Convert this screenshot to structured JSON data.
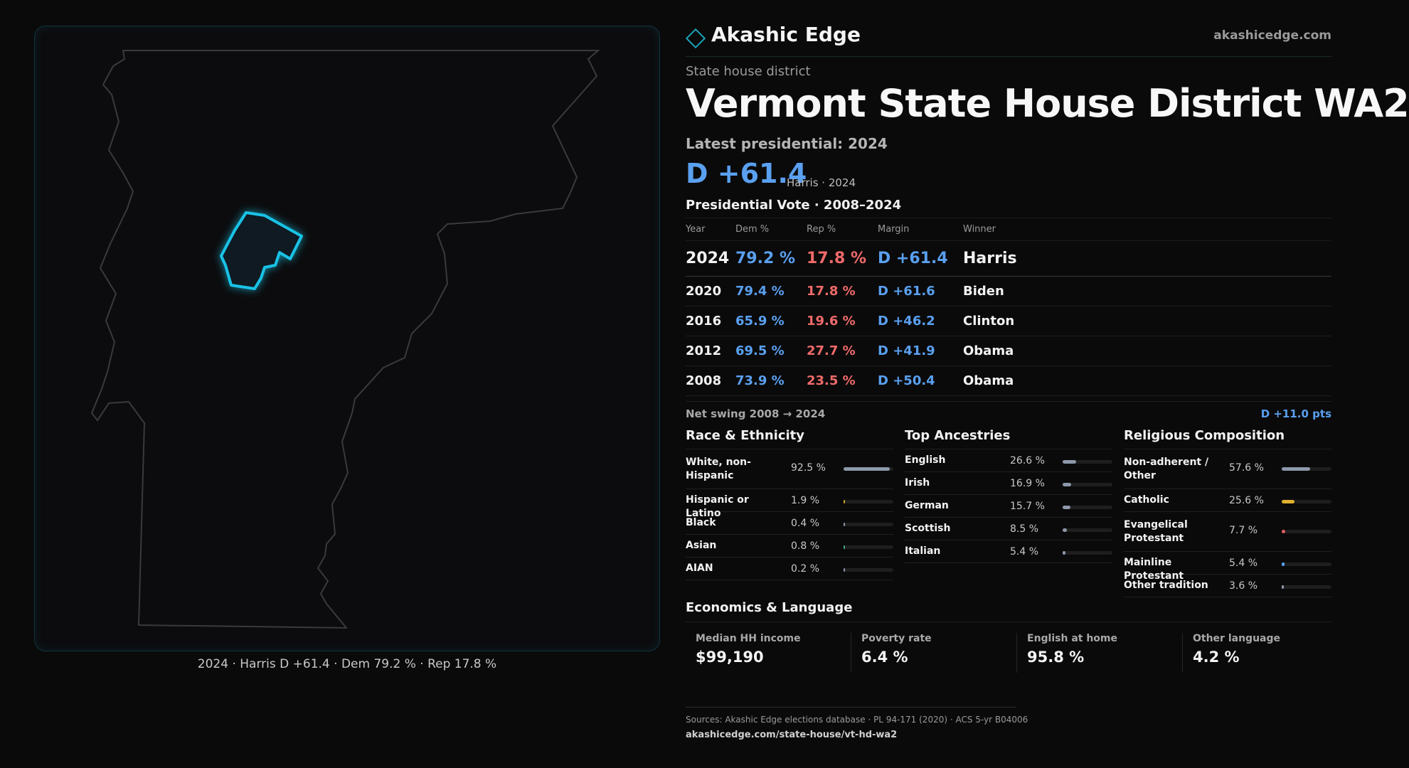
{
  "brand": {
    "name": "Akashic Edge",
    "url": "akashicedge.com",
    "accent": "#1aa3b8"
  },
  "kicker": "State house district",
  "title": "Vermont  State House District WA2",
  "latest_label": "Latest presidential: 2024",
  "latest_margin": "D +61.4",
  "latest_sub": "Harris · 2024",
  "map_caption": "2024 · Harris D +61.4 · Dem 79.2 % · Rep 17.8 %",
  "presidential": {
    "heading": "Presidential Vote · 2008–2024",
    "columns": [
      "Year",
      "Dem %",
      "Rep %",
      "Margin",
      "Winner"
    ],
    "rows": [
      {
        "year": "2024",
        "dem": "79.2 %",
        "rep": "17.8 %",
        "margin": "D +61.4",
        "winner": "Harris"
      },
      {
        "year": "2020",
        "dem": "79.4 %",
        "rep": "17.8 %",
        "margin": "D +61.6",
        "winner": "Biden"
      },
      {
        "year": "2016",
        "dem": "65.9 %",
        "rep": "19.6 %",
        "margin": "D +46.2",
        "winner": "Clinton"
      },
      {
        "year": "2012",
        "dem": "69.5 %",
        "rep": "27.7 %",
        "margin": "D +41.9",
        "winner": "Obama"
      },
      {
        "year": "2008",
        "dem": "73.9 %",
        "rep": "23.5 %",
        "margin": "D +50.4",
        "winner": "Obama"
      }
    ]
  },
  "swing": {
    "label": "Net swing 2008 → 2024",
    "value": "D +11.0 pts"
  },
  "race": {
    "heading": "Race & Ethnicity",
    "items": [
      {
        "label": "White, non-Hispanic",
        "value": "92.5 %",
        "fraction": 0.925,
        "color": "#8d99aa"
      },
      {
        "label": "Hispanic or Latino",
        "value": "1.9 %",
        "fraction": 0.019,
        "color": "#c9a227"
      },
      {
        "label": "Black",
        "value": "0.4 %",
        "fraction": 0.004,
        "color": "#8d99aa"
      },
      {
        "label": "Asian",
        "value": "0.8 %",
        "fraction": 0.008,
        "color": "#3fae7a"
      },
      {
        "label": "AIAN",
        "value": "0.2 %",
        "fraction": 0.002,
        "color": "#8d99aa"
      }
    ]
  },
  "ancestry": {
    "heading": "Top Ancestries",
    "items": [
      {
        "label": "English",
        "value": "26.6 %",
        "fraction": 0.266,
        "color": "#8d99aa"
      },
      {
        "label": "Irish",
        "value": "16.9 %",
        "fraction": 0.169,
        "color": "#8d99aa"
      },
      {
        "label": "German",
        "value": "15.7 %",
        "fraction": 0.157,
        "color": "#8d99aa"
      },
      {
        "label": "Scottish",
        "value": "8.5 %",
        "fraction": 0.085,
        "color": "#8d99aa"
      },
      {
        "label": "Italian",
        "value": "5.4 %",
        "fraction": 0.054,
        "color": "#8d99aa"
      }
    ]
  },
  "religion": {
    "heading": "Religious Composition",
    "items": [
      {
        "label": "Non-adherent / Other",
        "value": "57.6 %",
        "fraction": 0.576,
        "color": "#8d99aa"
      },
      {
        "label": "Catholic",
        "value": "25.6 %",
        "fraction": 0.256,
        "color": "#e0b030"
      },
      {
        "label": "Evangelical Protestant",
        "value": "7.7 %",
        "fraction": 0.077,
        "color": "#e06060"
      },
      {
        "label": "Mainline Protestant",
        "value": "5.4 %",
        "fraction": 0.054,
        "color": "#5aa0f0"
      },
      {
        "label": "Other tradition",
        "value": "3.6 %",
        "fraction": 0.036,
        "color": "#8d99aa"
      }
    ]
  },
  "economics": {
    "heading": "Economics & Language",
    "cards": [
      {
        "label": "Median HH income",
        "value": "$99,190"
      },
      {
        "label": "Poverty rate",
        "value": "6.4 %"
      },
      {
        "label": "English at home",
        "value": "95.8 %"
      },
      {
        "label": "Other language",
        "value": "4.2 %"
      }
    ]
  },
  "footer": {
    "sources": "Sources: Akashic Edge elections database · PL 94-171 (2020) · ACS 5-yr B04006",
    "url": "akashicedge.com/state-house/vt-hd-wa2"
  },
  "colors": {
    "dem": "#5aa0f0",
    "rep": "#f06a6a",
    "district": "#19c3e6"
  }
}
